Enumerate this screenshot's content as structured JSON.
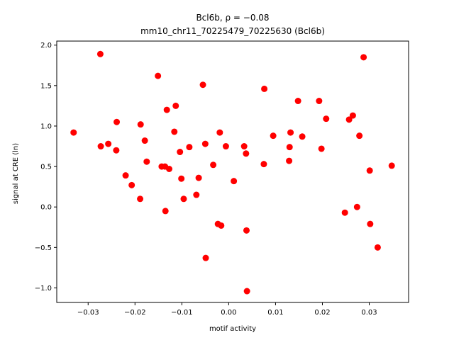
{
  "chart_data": {
    "type": "scatter",
    "title_line1": "Bcl6b, ρ = −0.08",
    "title_line2": "mm10_chr11_70225479_70225630 (Bcl6b)",
    "xlabel": "motif activity",
    "ylabel": "signal at CRE (ln)",
    "xlim": [
      -0.0367,
      0.0384
    ],
    "ylim": [
      -1.18,
      2.05
    ],
    "xticks": [
      -0.03,
      -0.02,
      -0.01,
      0.0,
      0.01,
      0.02,
      0.03
    ],
    "xtick_labels": [
      "−0.03",
      "−0.02",
      "−0.01",
      "0.00",
      "0.01",
      "0.02",
      "0.03"
    ],
    "yticks": [
      -1.0,
      -0.5,
      0.0,
      0.5,
      1.0,
      1.5,
      2.0
    ],
    "ytick_labels": [
      "−1.0",
      "−0.5",
      "0.0",
      "0.5",
      "1.0",
      "1.5",
      "2.0"
    ],
    "grid": false,
    "marker_color": "#ff0000",
    "x": [
      -0.0331,
      -0.0274,
      -0.0273,
      -0.0257,
      -0.024,
      -0.0239,
      -0.022,
      -0.0207,
      -0.0189,
      -0.0188,
      -0.0179,
      -0.0175,
      -0.0151,
      -0.0143,
      -0.0136,
      -0.0135,
      -0.0132,
      -0.0127,
      -0.0116,
      -0.0113,
      -0.0104,
      -0.0101,
      -0.0096,
      -0.0084,
      -0.0069,
      -0.0064,
      -0.0055,
      -0.005,
      -0.0049,
      -0.0033,
      -0.0023,
      -0.0019,
      -0.0016,
      -0.0006,
      0.0011,
      0.0033,
      0.0037,
      0.0038,
      0.0039,
      0.0075,
      0.0076,
      0.0095,
      0.0129,
      0.013,
      0.0132,
      0.0148,
      0.0157,
      0.0193,
      0.0198,
      0.0208,
      0.0248,
      0.0257,
      0.0265,
      0.0274,
      0.0279,
      0.0288,
      0.0301,
      0.0302,
      0.0318,
      0.0348
    ],
    "y": [
      0.92,
      1.89,
      0.75,
      0.78,
      0.7,
      1.05,
      0.39,
      0.27,
      0.1,
      1.02,
      0.82,
      0.56,
      1.62,
      0.5,
      0.5,
      -0.05,
      1.2,
      0.47,
      0.93,
      1.25,
      0.68,
      0.35,
      0.1,
      0.74,
      0.15,
      0.36,
      1.51,
      0.78,
      -0.63,
      0.52,
      -0.21,
      0.92,
      -0.23,
      0.75,
      0.32,
      0.75,
      0.66,
      -0.29,
      -1.04,
      0.53,
      1.46,
      0.88,
      0.57,
      0.74,
      0.92,
      1.31,
      0.87,
      1.31,
      0.72,
      1.09,
      -0.07,
      1.08,
      1.13,
      0.0,
      0.88,
      1.85,
      0.45,
      -0.21,
      -0.5,
      0.51
    ]
  }
}
